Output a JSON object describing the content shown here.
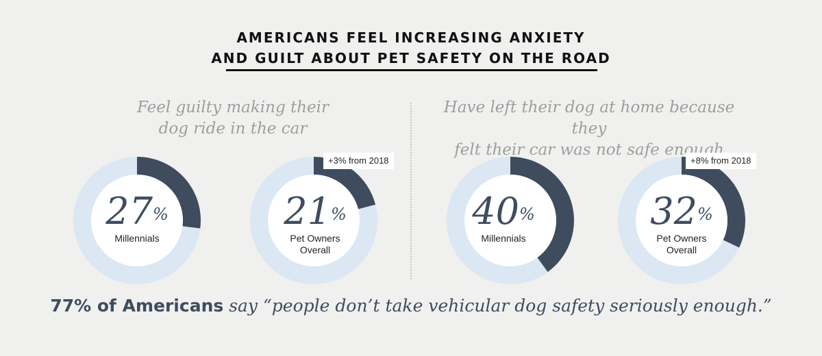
{
  "title": {
    "line1": "AMERICANS FEEL INCREASING ANXIETY",
    "line2": "AND GUILT ABOUT PET SAFETY ON THE ROAD"
  },
  "colors": {
    "ring_track": "#dbe7f3",
    "ring_fill": "#3e4c5e",
    "inner": "#ffffff",
    "text_dark": "#3e4c5e"
  },
  "sections": [
    {
      "heading_line1": "Feel guilty making their",
      "heading_line2": "dog ride in the car"
    },
    {
      "heading_line1": "Have left their dog at home because they",
      "heading_line2": "felt their car was not safe enough"
    }
  ],
  "chart_data": [
    {
      "type": "donut",
      "title": "Feel guilty making their dog ride in the car",
      "items": [
        {
          "label_line1": "Millennials",
          "label_line2": "",
          "value": 27,
          "display": "27",
          "unit": "%",
          "change_label": ""
        },
        {
          "label_line1": "Pet Owners",
          "label_line2": "Overall",
          "value": 21,
          "display": "21",
          "unit": "%",
          "change_label": "+3% from 2018"
        }
      ]
    },
    {
      "type": "donut",
      "title": "Have left their dog at home because they felt their car was not safe enough",
      "items": [
        {
          "label_line1": "Millennials",
          "label_line2": "",
          "value": 40,
          "display": "40",
          "unit": "%",
          "change_label": ""
        },
        {
          "label_line1": "Pet Owners",
          "label_line2": "Overall",
          "value": 32,
          "display": "32",
          "unit": "%",
          "change_label": "+8% from 2018"
        }
      ]
    }
  ],
  "footer": {
    "stat": "77% of Americans",
    "middle": " say ",
    "quote": "“people don’t take vehicular dog safety seriously enough.”"
  }
}
